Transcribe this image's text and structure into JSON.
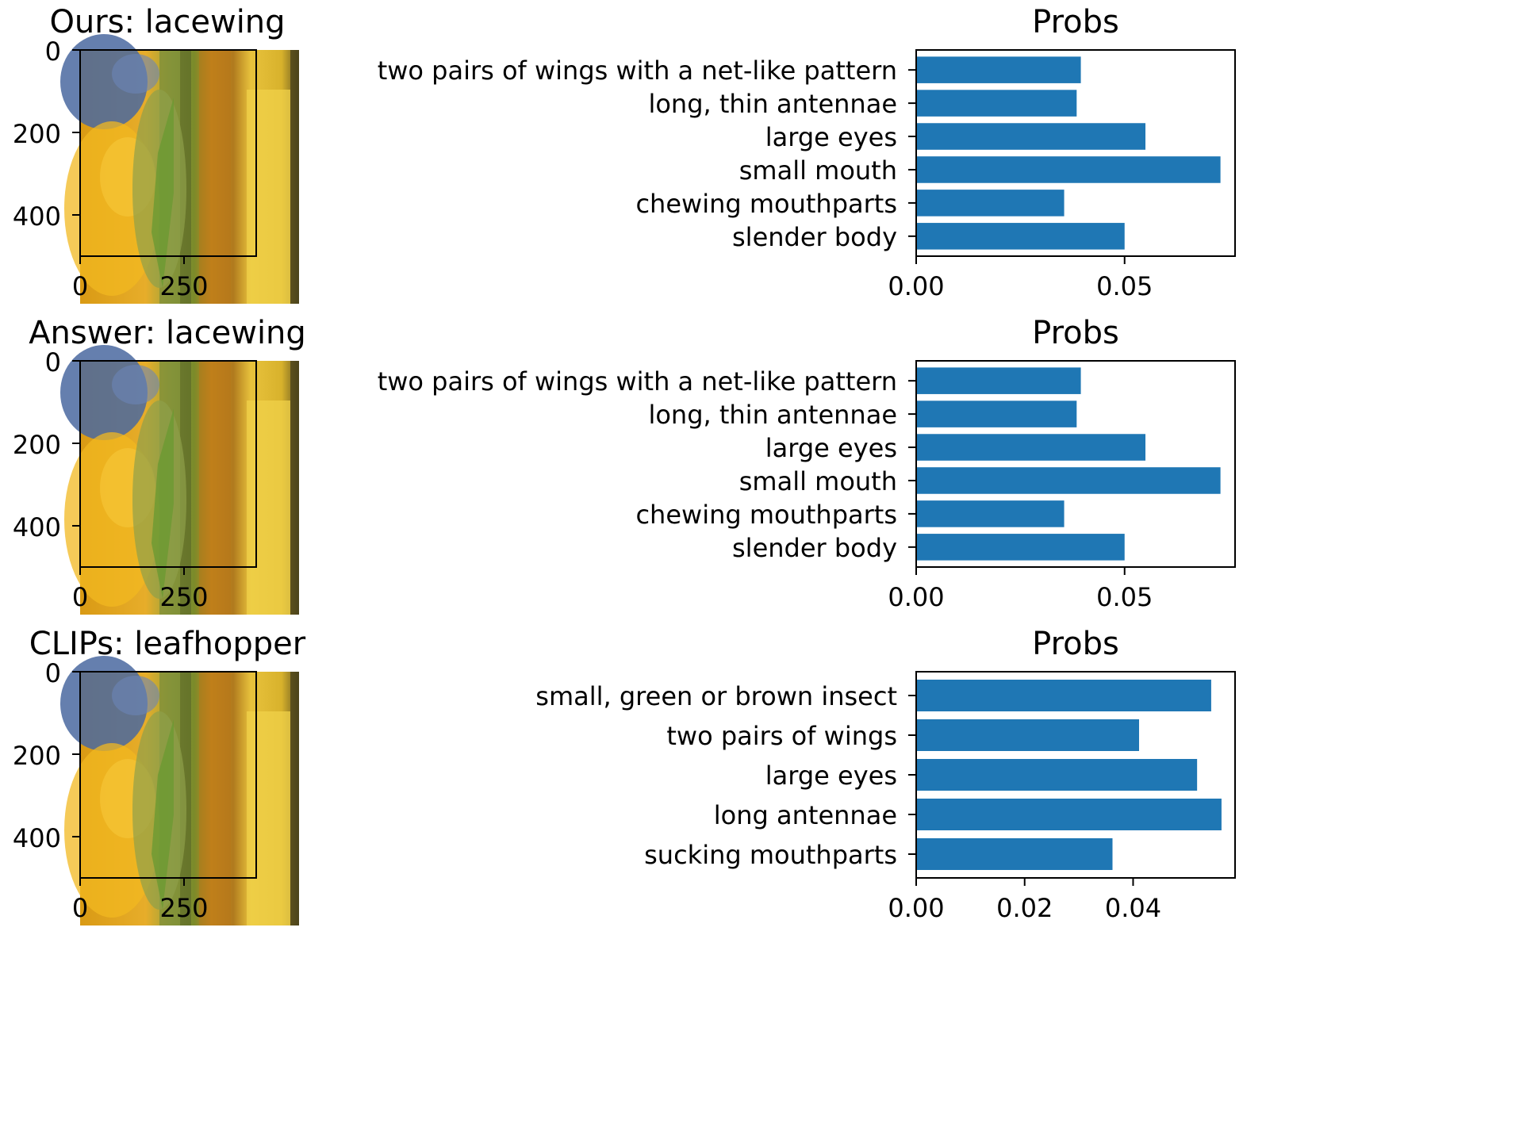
{
  "figure": {
    "panels": [
      {
        "image_title": "Ours: lacewing",
        "chart_title": "Probs",
        "image_xticks": [
          "0",
          "250"
        ],
        "image_yticks": [
          "0",
          "200",
          "400"
        ]
      },
      {
        "image_title": "Answer: lacewing",
        "chart_title": "Probs",
        "image_xticks": [
          "0",
          "250"
        ],
        "image_yticks": [
          "0",
          "200",
          "400"
        ]
      },
      {
        "image_title": "CLIPs: leafhopper",
        "chart_title": "Probs",
        "image_xticks": [
          "0",
          "250"
        ],
        "image_yticks": [
          "0",
          "200",
          "400"
        ]
      }
    ],
    "colors": {
      "bar": "#1f77b4",
      "axis": "#000000"
    },
    "image_content": "blurred photo of a green lacewing on a plant stem, yellow/orange background"
  },
  "chart_data": [
    {
      "type": "bar",
      "orientation": "horizontal",
      "title": "Probs",
      "categories": [
        "two pairs of wings with a net-like pattern",
        "long, thin antennae",
        "large eyes",
        "small mouth",
        "chewing mouthparts",
        "slender body"
      ],
      "values": [
        0.0395,
        0.0385,
        0.055,
        0.073,
        0.0355,
        0.05
      ],
      "xlim": [
        0,
        0.0765
      ],
      "xticks": [
        0.0,
        0.05
      ],
      "xtick_labels": [
        "0.00",
        "0.05"
      ],
      "xlabel": "",
      "ylabel": ""
    },
    {
      "type": "bar",
      "orientation": "horizontal",
      "title": "Probs",
      "categories": [
        "two pairs of wings with a net-like pattern",
        "long, thin antennae",
        "large eyes",
        "small mouth",
        "chewing mouthparts",
        "slender body"
      ],
      "values": [
        0.0395,
        0.0385,
        0.055,
        0.073,
        0.0355,
        0.05
      ],
      "xlim": [
        0,
        0.0765
      ],
      "xticks": [
        0.0,
        0.05
      ],
      "xtick_labels": [
        "0.00",
        "0.05"
      ],
      "xlabel": "",
      "ylabel": ""
    },
    {
      "type": "bar",
      "orientation": "horizontal",
      "title": "Probs",
      "categories": [
        "small, green or brown insect",
        "two pairs of wings",
        "large eyes",
        "long antennae",
        "sucking mouthparts"
      ],
      "values": [
        0.0544,
        0.0411,
        0.0518,
        0.0563,
        0.0362
      ],
      "xlim": [
        0,
        0.0588
      ],
      "xticks": [
        0.0,
        0.02,
        0.04
      ],
      "xtick_labels": [
        "0.00",
        "0.02",
        "0.04"
      ],
      "xlabel": "",
      "ylabel": ""
    }
  ]
}
